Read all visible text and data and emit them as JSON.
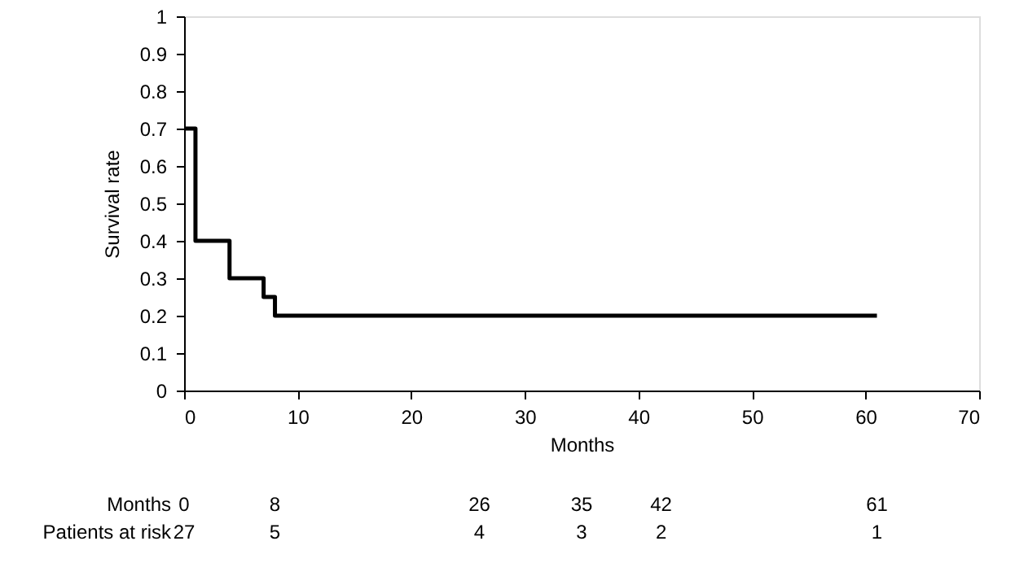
{
  "chart_data": {
    "type": "step",
    "xlabel": "Months",
    "ylabel": "Survival rate",
    "x": [
      0,
      1,
      4,
      7,
      8,
      61
    ],
    "series": [
      {
        "color": "#000000",
        "values": [
          0.7,
          0.4,
          0.3,
          0.25,
          0.2,
          0.2
        ]
      }
    ],
    "xlim": [
      0,
      70
    ],
    "xticks": [
      0,
      10,
      20,
      30,
      40,
      50,
      60,
      70
    ],
    "ylim": [
      0,
      1
    ],
    "yticks": [
      0,
      0.1,
      0.2,
      0.3,
      0.4,
      0.5,
      0.6,
      0.7,
      0.8,
      0.9,
      1
    ],
    "grid": false,
    "marker": "none",
    "line_style": "solid",
    "annotations": [
      "Months",
      "0",
      "8",
      "26",
      "35",
      "42",
      "61",
      "Patients at risk",
      "27",
      "5",
      "4",
      "3",
      "2",
      "1"
    ]
  }
}
